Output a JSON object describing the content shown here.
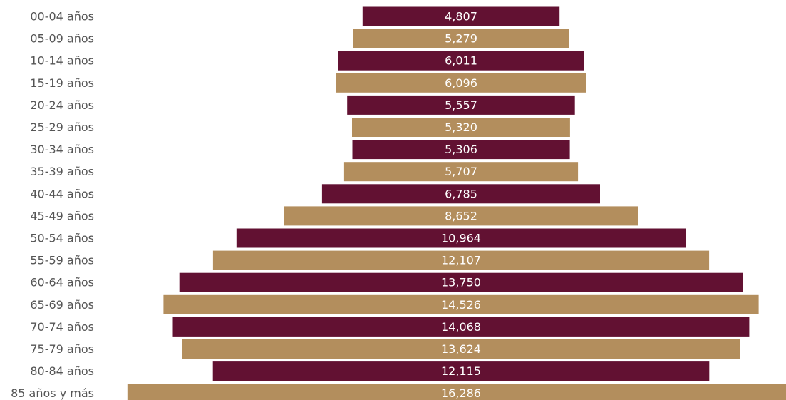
{
  "chart_data": {
    "type": "bar",
    "orientation": "horizontal-centered",
    "categories": [
      "00-04 años",
      "05-09 años",
      "10-14 años",
      "15-19 años",
      "20-24 años",
      "25-29 años",
      "30-34 años",
      "35-39 años",
      "40-44 años",
      "45-49 años",
      "50-54 años",
      "55-59 años",
      "60-64 años",
      "65-69 años",
      "70-74 años",
      "75-79 años",
      "80-84 años",
      "85 años y más"
    ],
    "values": [
      4807,
      5279,
      6011,
      6096,
      5557,
      5320,
      5306,
      5707,
      6785,
      8652,
      10964,
      12107,
      13750,
      14526,
      14068,
      13624,
      12115,
      16286
    ],
    "value_labels": [
      "4,807",
      "5,279",
      "6,011",
      "6,096",
      "5,557",
      "5,320",
      "5,306",
      "5,707",
      "6,785",
      "8,652",
      "10,964",
      "12,107",
      "13,750",
      "14,526",
      "14,068",
      "13,624",
      "12,115",
      "16,286"
    ],
    "colors": [
      "#621132",
      "#b38e5d"
    ],
    "title": "",
    "xlabel": "",
    "ylabel": "",
    "grid": false,
    "legend": "none"
  }
}
